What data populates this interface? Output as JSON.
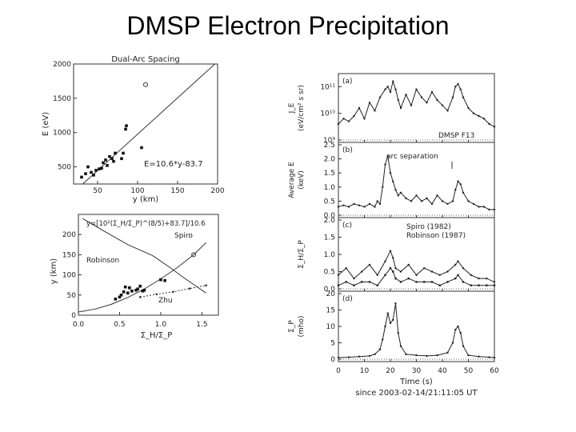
{
  "slide": {
    "title": "DMSP Electron Precipitation"
  },
  "chart_data": [
    {
      "id": "dual-arc",
      "type": "scatter",
      "title": "Dual-Arc Spacing",
      "xlabel": "y (km)",
      "ylabel": "E (eV)",
      "xlim": [
        20,
        200
      ],
      "ylim": [
        250,
        2000
      ],
      "xticks": [
        50,
        100,
        150,
        200
      ],
      "yticks": [
        500,
        1000,
        1500,
        2000
      ],
      "points": [
        {
          "x": 30,
          "y": 350
        },
        {
          "x": 35,
          "y": 400
        },
        {
          "x": 38,
          "y": 500
        },
        {
          "x": 42,
          "y": 420
        },
        {
          "x": 45,
          "y": 380
        },
        {
          "x": 48,
          "y": 450
        },
        {
          "x": 52,
          "y": 470
        },
        {
          "x": 55,
          "y": 480
        },
        {
          "x": 57,
          "y": 560
        },
        {
          "x": 60,
          "y": 600
        },
        {
          "x": 62,
          "y": 520
        },
        {
          "x": 65,
          "y": 650
        },
        {
          "x": 68,
          "y": 620
        },
        {
          "x": 70,
          "y": 580
        },
        {
          "x": 72,
          "y": 700
        },
        {
          "x": 80,
          "y": 620
        },
        {
          "x": 82,
          "y": 700
        },
        {
          "x": 85,
          "y": 1050
        },
        {
          "x": 86,
          "y": 1100
        },
        {
          "x": 105,
          "y": 780
        }
      ],
      "open_points": [
        {
          "x": 110,
          "y": 1700
        }
      ],
      "fit": {
        "slope": 10.6,
        "intercept": -83.7
      },
      "annotation": "E=10.6*y-83.7"
    },
    {
      "id": "spacing",
      "type": "scatter",
      "xlabel": "Σ_H/Σ_P",
      "ylabel": "y (km)",
      "xlim": [
        0.0,
        1.7
      ],
      "ylim": [
        0,
        250
      ],
      "xticks": [
        0.0,
        0.5,
        1.0,
        1.5
      ],
      "xtick_labels": [
        "0.0",
        "0.5",
        "1.0",
        "1.5"
      ],
      "yticks": [
        0,
        50,
        100,
        150,
        200
      ],
      "formula": "y=[10²(Σ_H/Σ_P)^(8/5)+83.7]/10.6",
      "curve_labels": {
        "spiro": "Spiro",
        "robinson": "Robinson",
        "zhu": "Zhu"
      },
      "spiro_curve": {
        "x": [
          0.0,
          0.2,
          0.4,
          0.6,
          0.8,
          1.0,
          1.2,
          1.4,
          1.55
        ],
        "y": [
          8,
          15,
          27,
          44,
          65,
          90,
          118,
          150,
          180
        ]
      },
      "robinson_curve": {
        "x": [
          0.05,
          0.3,
          0.6,
          0.9,
          1.1,
          1.3,
          1.55
        ],
        "y": [
          240,
          210,
          175,
          148,
          120,
          90,
          55
        ]
      },
      "zhu_line": {
        "x": [
          0.75,
          0.95,
          1.15,
          1.35,
          1.55
        ],
        "y": [
          45,
          52,
          58,
          66,
          74
        ]
      },
      "points": [
        {
          "x": 0.45,
          "y": 40
        },
        {
          "x": 0.5,
          "y": 45
        },
        {
          "x": 0.55,
          "y": 58
        },
        {
          "x": 0.6,
          "y": 55
        },
        {
          "x": 0.62,
          "y": 68
        },
        {
          "x": 0.65,
          "y": 60
        },
        {
          "x": 0.7,
          "y": 62
        },
        {
          "x": 0.72,
          "y": 65
        },
        {
          "x": 0.75,
          "y": 72
        },
        {
          "x": 0.78,
          "y": 60
        },
        {
          "x": 0.8,
          "y": 62
        },
        {
          "x": 1.0,
          "y": 88
        },
        {
          "x": 1.05,
          "y": 86
        },
        {
          "x": 0.52,
          "y": 50
        },
        {
          "x": 0.57,
          "y": 70
        }
      ],
      "open_points": [
        {
          "x": 1.4,
          "y": 150
        }
      ]
    },
    {
      "id": "time-series",
      "type": "line",
      "xlabel": "Time (s)",
      "xlim": [
        0,
        60
      ],
      "xticks": [
        0,
        10,
        20,
        30,
        40,
        50,
        60
      ],
      "time_label": "since 2003-02-14/21:11:05 UT",
      "panels": [
        {
          "id": "a",
          "tag": "(a)",
          "ylabel": "J_E",
          "ylabel_units": "(eV/cm² s sr)",
          "scale": "log",
          "ylim": [
            9,
            11.4
          ],
          "ytick_values": [
            9,
            10,
            11
          ],
          "ytick_labels": [
            "10⁹",
            "10¹⁰",
            "10¹¹"
          ],
          "extra_label": "DMSP F13",
          "x": [
            0,
            2,
            4,
            6,
            8,
            10,
            12,
            14,
            16,
            18,
            19,
            20,
            21,
            22,
            23,
            24,
            26,
            28,
            30,
            32,
            34,
            36,
            38,
            40,
            42,
            44,
            45,
            46,
            47,
            48,
            50,
            52,
            54,
            56,
            58,
            60
          ],
          "y": [
            9.6,
            9.8,
            9.7,
            9.9,
            10.2,
            9.8,
            10.4,
            10.1,
            10.6,
            10.9,
            11.0,
            10.8,
            11.2,
            10.9,
            10.5,
            10.2,
            10.7,
            10.3,
            10.9,
            10.6,
            10.4,
            10.8,
            10.5,
            10.3,
            10.1,
            10.6,
            11.0,
            11.1,
            10.9,
            10.6,
            10.2,
            10.0,
            9.9,
            9.8,
            9.6,
            9.5
          ]
        },
        {
          "id": "b",
          "tag": "(b)",
          "ylabel": "Average E",
          "ylabel_units": "(keV)",
          "ylim": [
            0,
            2.5
          ],
          "ytick_values": [
            0,
            0.5,
            1.0,
            1.5,
            2.0,
            2.5
          ],
          "ytick_labels": [
            "0.0",
            "0.5",
            "1.0",
            "1.5",
            "2.0",
            "2.5"
          ],
          "extra_label": "arc separation",
          "x": [
            0,
            2,
            4,
            6,
            8,
            10,
            12,
            14,
            15,
            16,
            17,
            18,
            19,
            20,
            21,
            22,
            23,
            24,
            26,
            28,
            30,
            32,
            34,
            36,
            38,
            40,
            42,
            44,
            45,
            46,
            47,
            48,
            50,
            52,
            54,
            56,
            58,
            60
          ],
          "y": [
            0.3,
            0.35,
            0.3,
            0.4,
            0.35,
            0.3,
            0.4,
            0.3,
            0.5,
            0.4,
            1.0,
            1.8,
            2.1,
            1.5,
            1.2,
            0.9,
            0.7,
            0.8,
            0.6,
            0.5,
            0.7,
            0.5,
            0.6,
            0.4,
            0.7,
            0.5,
            0.4,
            0.5,
            0.9,
            1.2,
            1.1,
            0.8,
            0.5,
            0.4,
            0.3,
            0.3,
            0.2,
            0.2
          ]
        },
        {
          "id": "c",
          "tag": "(c)",
          "ylabel": "Σ_H/Σ_P",
          "ylim": [
            0,
            2.0
          ],
          "ytick_values": [
            0,
            0.5,
            1.0,
            1.5,
            2.0
          ],
          "ytick_labels": [
            "0.0",
            "0.5",
            "1.0",
            "1.5",
            "2.0"
          ],
          "legend": [
            "Spiro (1982)",
            "Robinson (1987)"
          ],
          "series": [
            {
              "name": "Spiro (1982)",
              "x": [
                0,
                3,
                6,
                9,
                12,
                15,
                18,
                20,
                21,
                22,
                24,
                27,
                30,
                33,
                36,
                39,
                42,
                45,
                46,
                48,
                51,
                54,
                57,
                60
              ],
              "y": [
                0.4,
                0.6,
                0.3,
                0.5,
                0.7,
                0.4,
                0.8,
                1.1,
                0.9,
                0.6,
                0.5,
                0.7,
                0.4,
                0.6,
                0.5,
                0.4,
                0.5,
                0.7,
                0.8,
                0.6,
                0.4,
                0.3,
                0.3,
                0.2
              ]
            },
            {
              "name": "Robinson (1987)",
              "x": [
                0,
                3,
                6,
                9,
                12,
                15,
                18,
                20,
                21,
                22,
                24,
                27,
                30,
                33,
                36,
                39,
                42,
                45,
                46,
                48,
                51,
                54,
                57,
                60
              ],
              "y": [
                0.1,
                0.2,
                0.1,
                0.2,
                0.2,
                0.1,
                0.4,
                0.6,
                0.5,
                0.3,
                0.2,
                0.3,
                0.2,
                0.2,
                0.2,
                0.1,
                0.2,
                0.3,
                0.4,
                0.2,
                0.1,
                0.1,
                0.1,
                0.1
              ]
            }
          ]
        },
        {
          "id": "d",
          "tag": "(d)",
          "ylabel": "Σ_P",
          "ylabel_units": "(mho)",
          "ylim": [
            0,
            20
          ],
          "ytick_values": [
            0,
            5,
            10,
            15,
            20
          ],
          "ytick_labels": [
            "0",
            "5",
            "10",
            "15",
            "20"
          ],
          "x": [
            0,
            4,
            8,
            12,
            14,
            16,
            17,
            18,
            19,
            20,
            21,
            22,
            23,
            24,
            26,
            30,
            34,
            38,
            42,
            44,
            45,
            46,
            47,
            48,
            50,
            54,
            58,
            60
          ],
          "y": [
            0.5,
            0.6,
            0.8,
            1.0,
            1.5,
            3,
            6,
            10,
            14,
            11,
            12,
            17,
            8,
            4,
            1.5,
            1.2,
            1.0,
            1.2,
            2,
            5,
            9,
            10,
            8,
            4,
            1.2,
            0.8,
            0.6,
            0.5
          ]
        }
      ]
    }
  ]
}
